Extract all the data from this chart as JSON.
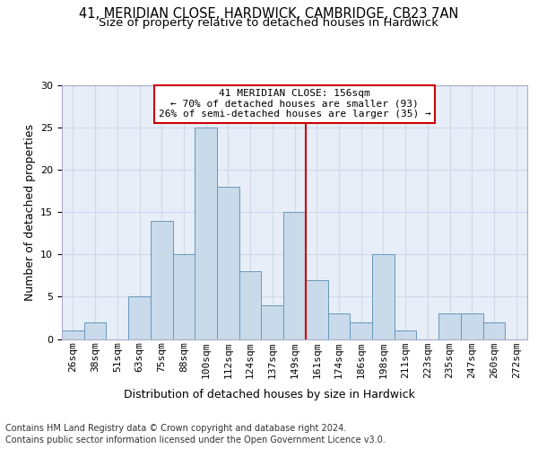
{
  "title_line1": "41, MERIDIAN CLOSE, HARDWICK, CAMBRIDGE, CB23 7AN",
  "title_line2": "Size of property relative to detached houses in Hardwick",
  "xlabel": "Distribution of detached houses by size in Hardwick",
  "ylabel": "Number of detached properties",
  "categories": [
    "26sqm",
    "38sqm",
    "51sqm",
    "63sqm",
    "75sqm",
    "88sqm",
    "100sqm",
    "112sqm",
    "124sqm",
    "137sqm",
    "149sqm",
    "161sqm",
    "174sqm",
    "186sqm",
    "198sqm",
    "211sqm",
    "223sqm",
    "235sqm",
    "247sqm",
    "260sqm",
    "272sqm"
  ],
  "values": [
    1,
    2,
    0,
    5,
    14,
    10,
    25,
    18,
    8,
    4,
    15,
    7,
    3,
    2,
    10,
    1,
    0,
    3,
    3,
    2,
    0
  ],
  "bar_color": "#c9daea",
  "bar_edge_color": "#6699bb",
  "annotation_line1": "41 MERIDIAN CLOSE: 156sqm",
  "annotation_line2": "← 70% of detached houses are smaller (93)",
  "annotation_line3": "26% of semi-detached houses are larger (35) →",
  "annotation_box_color": "#ffffff",
  "annotation_box_edge_color": "#cc0000",
  "red_line_x": 10.5,
  "red_line_color": "#cc0000",
  "ylim": [
    0,
    30
  ],
  "yticks": [
    0,
    5,
    10,
    15,
    20,
    25,
    30
  ],
  "grid_color": "#d0d8e8",
  "bg_color": "#e8eef8",
  "footer_line1": "Contains HM Land Registry data © Crown copyright and database right 2024.",
  "footer_line2": "Contains public sector information licensed under the Open Government Licence v3.0.",
  "title_fontsize": 10.5,
  "subtitle_fontsize": 9.5,
  "xlabel_fontsize": 9,
  "ylabel_fontsize": 9,
  "tick_fontsize": 8,
  "annotation_fontsize": 8,
  "footer_fontsize": 7
}
